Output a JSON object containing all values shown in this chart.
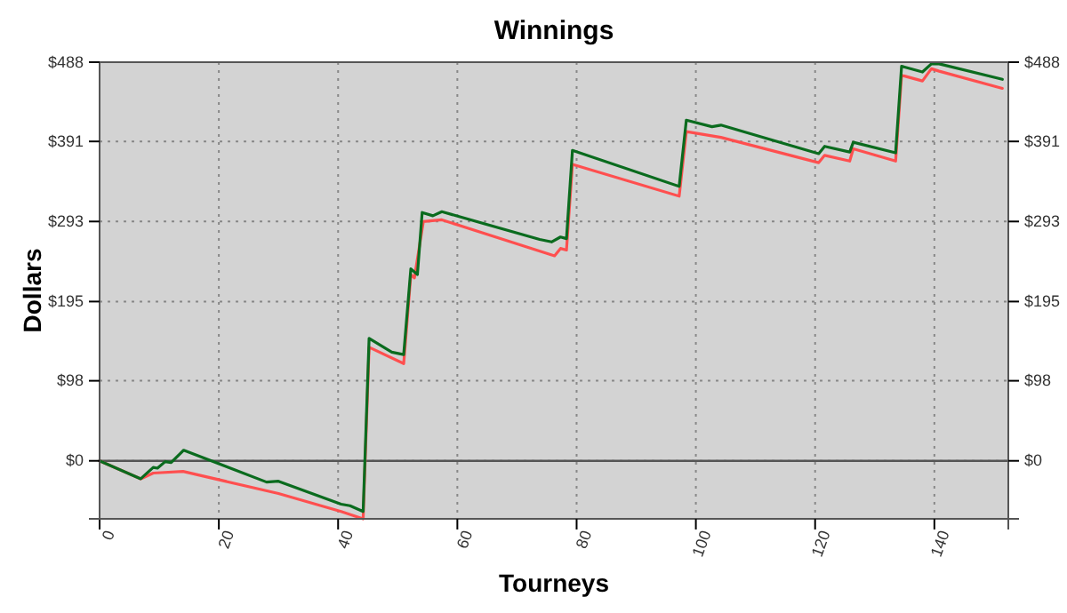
{
  "chart_data": {
    "type": "line",
    "title": "Winnings",
    "xlabel": "Tourneys",
    "ylabel": "Dollars",
    "xlim": [
      0,
      152.4
    ],
    "xticks": [
      0,
      20,
      40,
      60,
      80,
      100,
      120,
      140
    ],
    "ylim": [
      -71,
      488
    ],
    "yticks": [
      {
        "value": 0,
        "label": "$0"
      },
      {
        "value": 98,
        "label": "$98"
      },
      {
        "value": 195,
        "label": "$195"
      },
      {
        "value": 293,
        "label": "$293"
      },
      {
        "value": 391,
        "label": "$391"
      },
      {
        "value": 488,
        "label": "$488"
      }
    ],
    "y2lim": [
      -71,
      488
    ],
    "y2ticks": [
      {
        "value": 0,
        "label": "$0"
      },
      {
        "value": 98,
        "label": "$98"
      },
      {
        "value": 195,
        "label": "$195"
      },
      {
        "value": 293,
        "label": "$293"
      },
      {
        "value": 391,
        "label": "$391"
      },
      {
        "value": 488,
        "label": "$488"
      }
    ],
    "grid": true,
    "line_style": "solid",
    "marker": "none",
    "ref_lines": [
      {
        "axis": "y",
        "value": 0,
        "label": null,
        "color": "#555555"
      }
    ],
    "series": [
      {
        "color": "#ff4f4f",
        "x": [
          0,
          6.9,
          9,
          14,
          30,
          40.5,
          44.2,
          45.2,
          51,
          52.2,
          52.8,
          54.3,
          57.4,
          76.3,
          77.3,
          78.3,
          79.3,
          97.2,
          98.4,
          104.2,
          120.6,
          121.6,
          125.8,
          126.4,
          133.5,
          134.5,
          138,
          139.5,
          140.8,
          151.4
        ],
        "values": [
          0,
          -22,
          -15,
          -13,
          -40,
          -62,
          -71,
          139,
          119,
          228,
          224,
          293,
          295,
          251,
          260,
          258,
          363,
          324,
          403,
          396,
          365,
          374,
          367,
          382,
          367,
          472,
          465,
          480,
          477,
          456
        ]
      },
      {
        "color": "#0a6b1e",
        "x": [
          0,
          6.9,
          9,
          9.7,
          11,
          12,
          14.1,
          28,
          30,
          40.5,
          42,
          44.2,
          45.2,
          49,
          51,
          52.2,
          53.3,
          54.1,
          55.9,
          57.4,
          73.8,
          75.8,
          77.3,
          78.3,
          79.3,
          97.2,
          98.4,
          102.7,
          104.2,
          120.6,
          121.6,
          125.8,
          126.4,
          133.5,
          134.5,
          138,
          139.5,
          140.8,
          151.4
        ],
        "values": [
          0,
          -22,
          -8,
          -9,
          -1,
          -2,
          13,
          -26,
          -25,
          -53,
          -55,
          -62,
          150,
          133,
          130,
          235,
          228,
          304,
          300,
          305,
          271,
          268,
          274,
          272,
          380,
          336,
          417,
          409,
          411,
          376,
          385,
          378,
          390,
          377,
          483,
          476,
          486,
          486,
          467
        ]
      }
    ]
  }
}
